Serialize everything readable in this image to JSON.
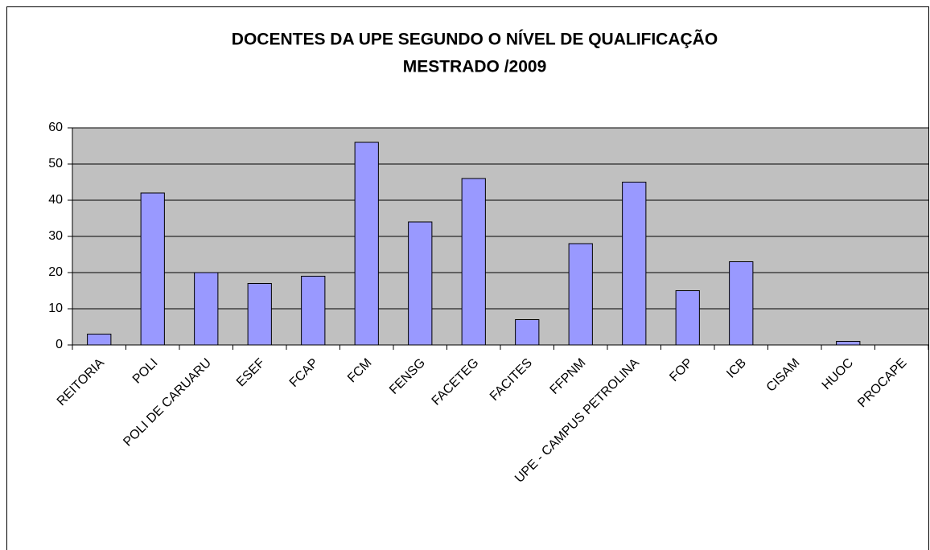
{
  "chart_data": {
    "type": "bar",
    "title": [
      "DOCENTES DA UPE SEGUNDO O NÍVEL DE QUALIFICAÇÃO",
      "MESTRADO /2009"
    ],
    "categories": [
      "REITORIA",
      "POLI",
      "POLI DE CARUARU",
      "ESEF",
      "FCAP",
      "FCM",
      "FENSG",
      "FACETEG",
      "FACITES",
      "FFPNM",
      "UPE - CAMPUS PETROLINA",
      "FOP",
      "ICB",
      "CISAM",
      "HUOC",
      "PROCAPE"
    ],
    "values": [
      3,
      42,
      20,
      17,
      19,
      56,
      34,
      46,
      7,
      28,
      45,
      15,
      23,
      0,
      1,
      0
    ],
    "color": "#9999ff",
    "ylim": [
      0,
      60
    ],
    "yticks": [
      0,
      10,
      20,
      30,
      40,
      50,
      60
    ],
    "grid": true
  }
}
